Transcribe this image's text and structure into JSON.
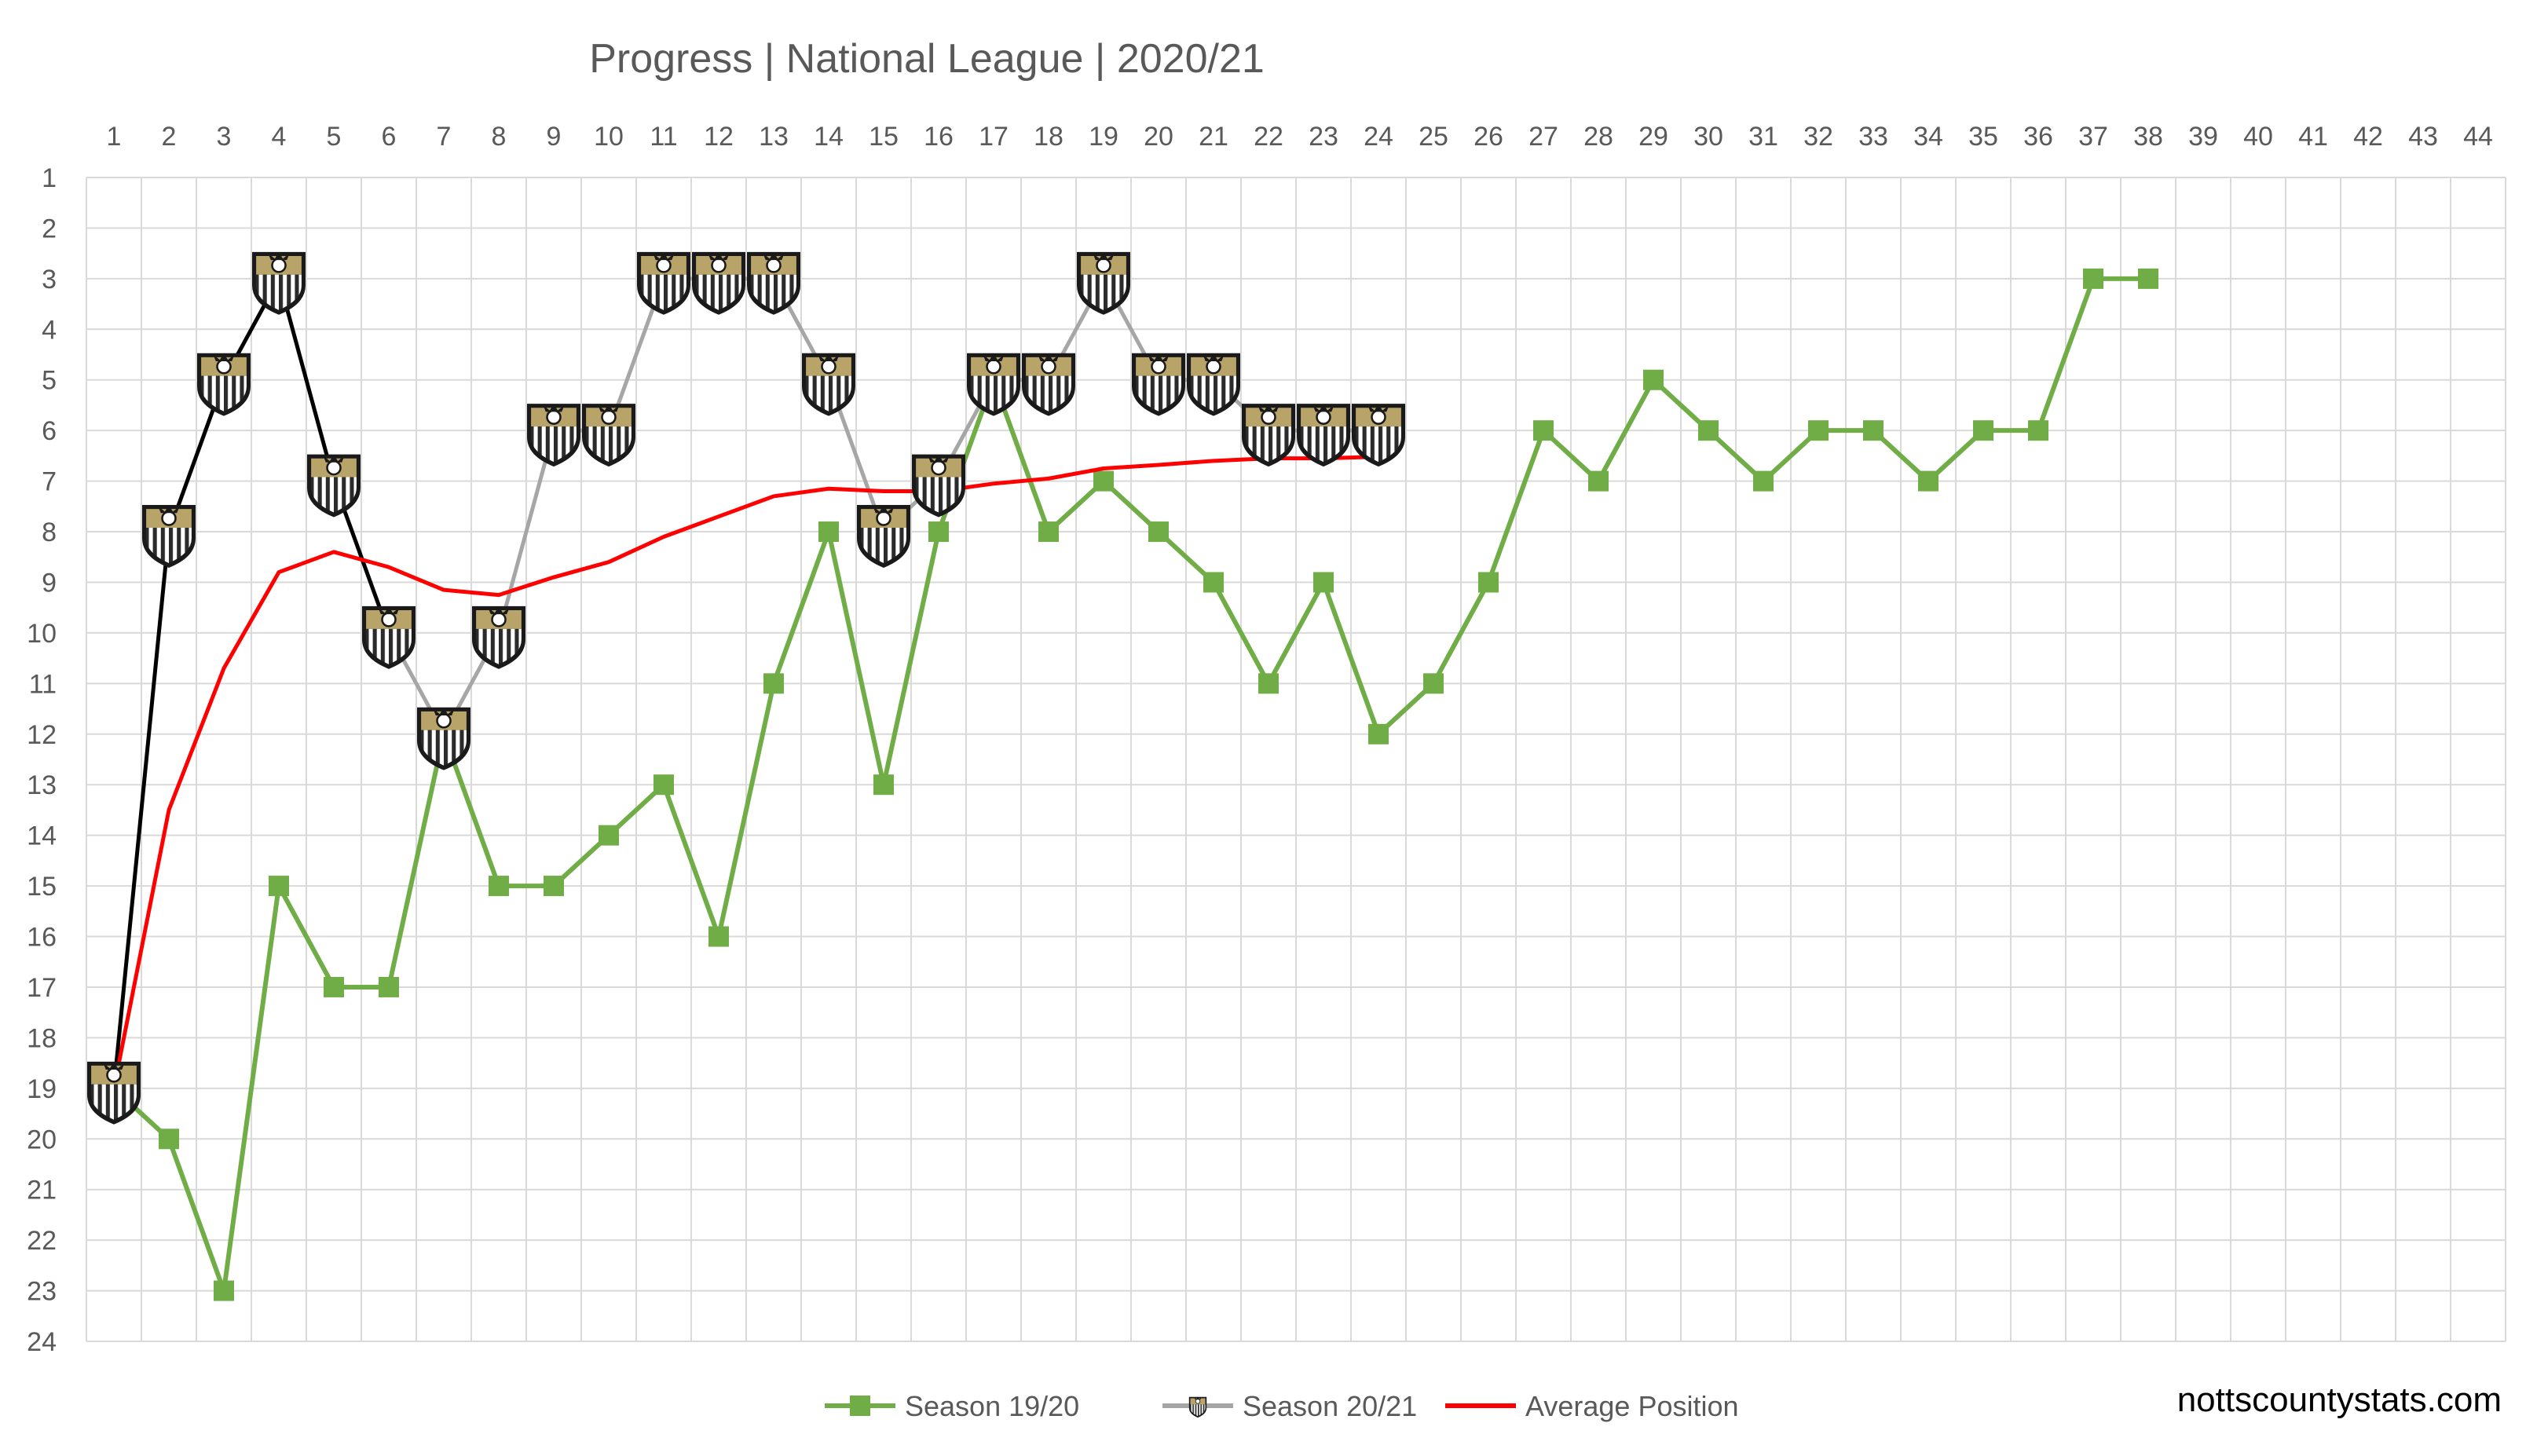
{
  "chart_data": {
    "type": "line",
    "title": "Progress | National League | 2020/21",
    "xlabel": "",
    "ylabel": "",
    "xlim": [
      1,
      44
    ],
    "ylim": [
      1,
      24
    ],
    "y_inverted": true,
    "grid": true,
    "legend_position": "bottom",
    "x_ticks": [
      1,
      2,
      3,
      4,
      5,
      6,
      7,
      8,
      9,
      10,
      11,
      12,
      13,
      14,
      15,
      16,
      17,
      18,
      19,
      20,
      21,
      22,
      23,
      24,
      25,
      26,
      27,
      28,
      29,
      30,
      31,
      32,
      33,
      34,
      35,
      36,
      37,
      38,
      39,
      40,
      41,
      42,
      43,
      44
    ],
    "y_ticks": [
      1,
      2,
      3,
      4,
      5,
      6,
      7,
      8,
      9,
      10,
      11,
      12,
      13,
      14,
      15,
      16,
      17,
      18,
      19,
      20,
      21,
      22,
      23,
      24
    ],
    "series": [
      {
        "name": "Season 19/20",
        "color": "#70ad47",
        "marker": "square",
        "x": [
          1,
          2,
          3,
          4,
          5,
          6,
          7,
          8,
          9,
          10,
          11,
          12,
          13,
          14,
          15,
          16,
          17,
          18,
          19,
          20,
          21,
          22,
          23,
          24,
          25,
          26,
          27,
          28,
          29,
          30,
          31,
          32,
          33,
          34,
          35,
          36,
          37,
          38
        ],
        "values": [
          19,
          20,
          23,
          15,
          17,
          17,
          12,
          15,
          15,
          14,
          13,
          16,
          11,
          8,
          13,
          8,
          5,
          8,
          7,
          8,
          9,
          11,
          9,
          12,
          11,
          9,
          6,
          7,
          5,
          6,
          7,
          6,
          6,
          7,
          6,
          6,
          3,
          3
        ]
      },
      {
        "name": "Season 20/21",
        "color": "#a6a6a6",
        "early_segment_color": "#000000",
        "marker": "club-crest-icon",
        "x": [
          1,
          2,
          3,
          4,
          5,
          6,
          7,
          8,
          9,
          10,
          11,
          12,
          13,
          14,
          15,
          16,
          17,
          18,
          19,
          20,
          21,
          22,
          23,
          24
        ],
        "values": [
          19,
          8,
          5,
          3,
          7,
          10,
          12,
          10,
          6,
          6,
          3,
          3,
          3,
          5,
          8,
          7,
          5,
          5,
          3,
          5,
          5,
          6,
          6,
          6
        ]
      },
      {
        "name": "Average Position",
        "color": "#ff0000",
        "marker": "none",
        "x": [
          1,
          2,
          3,
          4,
          5,
          6,
          7,
          8,
          9,
          10,
          11,
          12,
          13,
          14,
          15,
          16,
          17,
          18,
          19,
          20,
          21,
          22,
          23,
          24
        ],
        "values": [
          19,
          13.5,
          10.7,
          8.8,
          8.4,
          8.7,
          9.15,
          9.25,
          8.9,
          8.6,
          8.1,
          7.7,
          7.3,
          7.15,
          7.2,
          7.2,
          7.05,
          6.95,
          6.75,
          6.68,
          6.6,
          6.55,
          6.55,
          6.52
        ]
      }
    ]
  },
  "watermark": "nottscountystats.com",
  "colors": {
    "grid": "#d9d9d9",
    "text": "#595959",
    "crest_gold": "#b8a369",
    "crest_dark": "#3a3a3a"
  }
}
